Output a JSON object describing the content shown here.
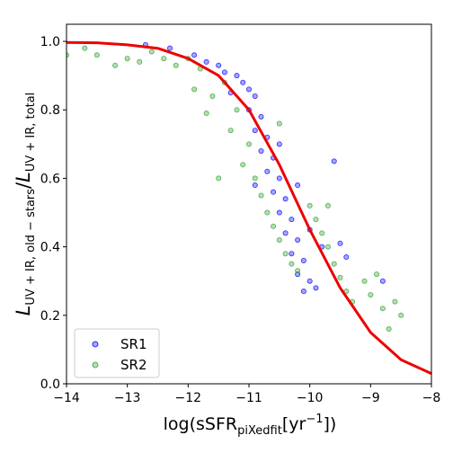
{
  "chart_data": {
    "type": "scatter",
    "xlabel": {
      "prefix": "log(sSFR",
      "sub": "piXedfit",
      "mid": "[yr",
      "sup": "−1",
      "suffix": "])"
    },
    "ylabel": {
      "main": "L",
      "sub_num": "UV + IR, old − stars",
      "slash": "/",
      "sub_den": "UV + IR, total"
    },
    "xlim": [
      -14,
      -8
    ],
    "ylim": [
      0.0,
      1.05
    ],
    "xticks": [
      -14,
      -13,
      -12,
      -11,
      -10,
      -9,
      -8
    ],
    "yticks": [
      0.0,
      0.2,
      0.4,
      0.6,
      0.8,
      1.0
    ],
    "xtick_labels": [
      "−14",
      "−13",
      "−12",
      "−11",
      "−10",
      "−9",
      "−8"
    ],
    "ytick_labels": [
      "0.0",
      "0.2",
      "0.4",
      "0.6",
      "0.8",
      "1.0"
    ],
    "grid": false,
    "legend_position": "lower-left",
    "series": [
      {
        "name": "SR1",
        "kind": "scatter",
        "color": "#0000ff",
        "points": [
          [
            -12.7,
            0.99
          ],
          [
            -12.3,
            0.98
          ],
          [
            -11.9,
            0.96
          ],
          [
            -11.7,
            0.94
          ],
          [
            -11.5,
            0.93
          ],
          [
            -11.4,
            0.91
          ],
          [
            -11.2,
            0.9
          ],
          [
            -11.1,
            0.88
          ],
          [
            -11.0,
            0.86
          ],
          [
            -10.9,
            0.84
          ],
          [
            -11.0,
            0.8
          ],
          [
            -10.8,
            0.78
          ],
          [
            -10.9,
            0.74
          ],
          [
            -10.7,
            0.72
          ],
          [
            -10.8,
            0.68
          ],
          [
            -10.6,
            0.66
          ],
          [
            -10.7,
            0.62
          ],
          [
            -10.5,
            0.6
          ],
          [
            -10.6,
            0.56
          ],
          [
            -10.4,
            0.54
          ],
          [
            -10.5,
            0.5
          ],
          [
            -10.3,
            0.48
          ],
          [
            -10.4,
            0.44
          ],
          [
            -10.2,
            0.42
          ],
          [
            -10.3,
            0.38
          ],
          [
            -10.1,
            0.36
          ],
          [
            -10.2,
            0.32
          ],
          [
            -10.0,
            0.3
          ],
          [
            -9.9,
            0.28
          ],
          [
            -10.1,
            0.27
          ],
          [
            -9.6,
            0.65
          ],
          [
            -9.5,
            0.41
          ],
          [
            -9.4,
            0.37
          ],
          [
            -8.8,
            0.3
          ],
          [
            -11.3,
            0.85
          ],
          [
            -10.9,
            0.58
          ],
          [
            -10.5,
            0.7
          ],
          [
            -10.2,
            0.58
          ],
          [
            -10.0,
            0.45
          ],
          [
            -9.8,
            0.4
          ]
        ]
      },
      {
        "name": "SR2",
        "kind": "scatter",
        "color": "#2ca02c",
        "points": [
          [
            -14.0,
            0.96
          ],
          [
            -13.7,
            0.98
          ],
          [
            -13.5,
            0.96
          ],
          [
            -13.2,
            0.93
          ],
          [
            -13.0,
            0.95
          ],
          [
            -12.8,
            0.94
          ],
          [
            -12.6,
            0.97
          ],
          [
            -12.4,
            0.95
          ],
          [
            -12.2,
            0.93
          ],
          [
            -12.0,
            0.95
          ],
          [
            -11.8,
            0.92
          ],
          [
            -11.9,
            0.86
          ],
          [
            -11.6,
            0.84
          ],
          [
            -11.7,
            0.79
          ],
          [
            -11.4,
            0.88
          ],
          [
            -11.2,
            0.8
          ],
          [
            -11.3,
            0.74
          ],
          [
            -11.0,
            0.7
          ],
          [
            -11.1,
            0.64
          ],
          [
            -10.9,
            0.6
          ],
          [
            -10.8,
            0.55
          ],
          [
            -10.7,
            0.5
          ],
          [
            -10.6,
            0.46
          ],
          [
            -10.5,
            0.42
          ],
          [
            -10.4,
            0.38
          ],
          [
            -10.3,
            0.35
          ],
          [
            -10.2,
            0.33
          ],
          [
            -10.0,
            0.52
          ],
          [
            -9.9,
            0.48
          ],
          [
            -9.8,
            0.44
          ],
          [
            -9.7,
            0.4
          ],
          [
            -9.6,
            0.35
          ],
          [
            -9.5,
            0.31
          ],
          [
            -9.4,
            0.27
          ],
          [
            -9.3,
            0.24
          ],
          [
            -9.1,
            0.3
          ],
          [
            -9.0,
            0.26
          ],
          [
            -8.9,
            0.32
          ],
          [
            -8.8,
            0.22
          ],
          [
            -8.6,
            0.24
          ],
          [
            -8.5,
            0.2
          ],
          [
            -8.7,
            0.16
          ],
          [
            -9.7,
            0.52
          ],
          [
            -10.5,
            0.76
          ],
          [
            -11.5,
            0.6
          ]
        ]
      },
      {
        "name": "",
        "kind": "line",
        "color": "#ee0000",
        "x": [
          -14.0,
          -13.5,
          -13.0,
          -12.5,
          -12.0,
          -11.5,
          -11.0,
          -10.5,
          -10.0,
          -9.5,
          -9.0,
          -8.5,
          -8.0
        ],
        "y": [
          0.997,
          0.996,
          0.99,
          0.98,
          0.95,
          0.9,
          0.8,
          0.64,
          0.45,
          0.28,
          0.15,
          0.07,
          0.03
        ]
      }
    ]
  }
}
